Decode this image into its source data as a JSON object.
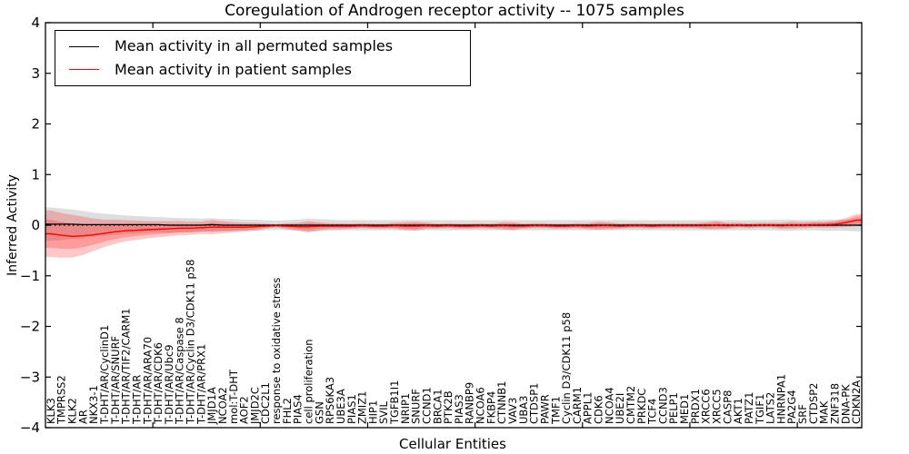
{
  "figure": {
    "title": "Coregulation of Androgen receptor activity -- 1075 samples",
    "xlabel": "Cellular Entities",
    "ylabel": "Inferred Activity"
  },
  "legend": {
    "items": [
      {
        "label": "Mean activity in all permuted samples",
        "color": "#000000"
      },
      {
        "label": "Mean activity in patient samples",
        "color": "#ff0000"
      }
    ]
  },
  "axes": {
    "y_ticks": [
      "4",
      "3",
      "2",
      "1",
      "0",
      "−1",
      "−2",
      "−3",
      "−4"
    ],
    "y_range": [
      -4,
      4
    ],
    "x_range": [
      0,
      76
    ],
    "x_major_tick_positions": [
      10,
      20,
      30,
      40,
      50,
      60,
      70
    ],
    "grid": "off",
    "zero_line_style": "dotted"
  },
  "chart_data": {
    "type": "line",
    "title": "Coregulation of Androgen receptor activity -- 1075 samples",
    "xlabel": "Cellular Entities",
    "ylabel": "Inferred Activity",
    "ylim": [
      -4,
      4
    ],
    "legend_position": "upper-left",
    "categories": [
      "KLK3",
      "TMPRSS2",
      "KLK2",
      "AR",
      "NKX3-1",
      "T-DHT/AR/CyclinD1",
      "T-DHT/AR/SNURF",
      "T-DHT/AR/TIF2/CARM1",
      "T-DHT/AR",
      "T-DHT/AR/ARA70",
      "T-DHT/AR/CDK6",
      "T-DHT/AR/Ubc9",
      "T-DHT/AR/Caspase 8",
      "T-DHT/AR/Cyclin D3/CDK11 p58",
      "T-DHT/AR/PRX1",
      "JMJD1A",
      "NCOA2",
      "mol:T-DHT",
      "AOF2",
      "JMJD2C",
      "CDC2L1",
      "response to oxidative stress",
      "FHL2",
      "PIAS4",
      "cell proliferation",
      "GSN",
      "RPS6KA3",
      "UBE3A",
      "PIAS1",
      "ZMIZ1",
      "HIP1",
      "SVIL",
      "TGFB1I1",
      "NRIP1",
      "SNURF",
      "CCND1",
      "BRCA1",
      "PTK2B",
      "PIAS3",
      "RANBP9",
      "NCOA6",
      "FKBP4",
      "CTNNB1",
      "VAV3",
      "UBA3",
      "CTDSP1",
      "PAWR",
      "TMF1",
      "Cyclin D3/CDK11 p58",
      "CARM1",
      "APPL1",
      "CDK6",
      "NCOA4",
      "UBE2I",
      "CMTM2",
      "PRKDC",
      "TCF4",
      "CCND3",
      "PELP1",
      "MED1",
      "PRDX1",
      "XRCC6",
      "XRCC5",
      "CASP8",
      "AKT1",
      "PATZ1",
      "TGIF1",
      "LATS2",
      "HNRNPA1",
      "PA2G4",
      "SRF",
      "CTDSP2",
      "MAK",
      "ZNF318",
      "DNA-PK",
      "CDKN2A"
    ],
    "series": [
      {
        "name": "Mean activity in all permuted samples",
        "color": "#000000",
        "band_color": "rgba(0,0,0,0.13)",
        "values": [
          0.02,
          0.02,
          0.02,
          0.01,
          0.01,
          0.01,
          0.01,
          0.01,
          0.01,
          0.01,
          0.01,
          0.0,
          0.0,
          0.0,
          0.0,
          0.01,
          0.0,
          0.0,
          0.0,
          0.0,
          0.0,
          0.0,
          0.0,
          0.0,
          0.0,
          0.0,
          0.0,
          0.0,
          0.0,
          0.0,
          0.0,
          0.0,
          0.0,
          0.0,
          0.0,
          0.0,
          0.0,
          0.0,
          0.0,
          0.0,
          0.0,
          0.0,
          0.0,
          0.0,
          0.0,
          0.0,
          0.0,
          0.0,
          0.0,
          0.0,
          0.0,
          0.0,
          0.0,
          0.0,
          0.0,
          0.0,
          0.0,
          0.0,
          0.0,
          0.0,
          0.0,
          0.0,
          0.0,
          0.0,
          0.0,
          0.0,
          0.0,
          0.0,
          0.0,
          0.0,
          0.0,
          0.0,
          0.0,
          0.0,
          0.0,
          0.0
        ],
        "band": [
          0.33,
          0.31,
          0.29,
          0.27,
          0.24,
          0.22,
          0.2,
          0.18,
          0.17,
          0.16,
          0.15,
          0.15,
          0.14,
          0.14,
          0.13,
          0.13,
          0.12,
          0.12,
          0.11,
          0.11,
          0.1,
          0.09,
          0.1,
          0.11,
          0.13,
          0.12,
          0.11,
          0.1,
          0.1,
          0.1,
          0.1,
          0.1,
          0.1,
          0.1,
          0.1,
          0.1,
          0.1,
          0.1,
          0.1,
          0.1,
          0.1,
          0.1,
          0.1,
          0.1,
          0.1,
          0.1,
          0.1,
          0.1,
          0.1,
          0.1,
          0.1,
          0.1,
          0.1,
          0.1,
          0.1,
          0.1,
          0.1,
          0.1,
          0.1,
          0.1,
          0.1,
          0.1,
          0.1,
          0.1,
          0.1,
          0.1,
          0.1,
          0.1,
          0.11,
          0.11,
          0.1,
          0.1,
          0.11,
          0.11,
          0.11,
          0.12
        ]
      },
      {
        "name": "Mean activity in patient samples",
        "color": "#ff0000",
        "band_color": "rgba(255,0,0,0.22)",
        "values": [
          -0.17,
          -0.2,
          -0.22,
          -0.21,
          -0.19,
          -0.16,
          -0.13,
          -0.11,
          -0.1,
          -0.09,
          -0.08,
          -0.07,
          -0.06,
          -0.06,
          -0.05,
          -0.04,
          -0.04,
          -0.04,
          -0.04,
          -0.03,
          -0.02,
          -0.01,
          -0.02,
          -0.03,
          -0.03,
          -0.02,
          -0.02,
          -0.02,
          -0.02,
          -0.01,
          -0.02,
          -0.02,
          -0.01,
          -0.02,
          -0.02,
          -0.01,
          -0.02,
          -0.01,
          -0.02,
          -0.02,
          -0.01,
          -0.02,
          -0.01,
          -0.02,
          -0.02,
          -0.01,
          -0.01,
          -0.02,
          -0.02,
          -0.01,
          -0.02,
          -0.01,
          -0.01,
          -0.02,
          -0.01,
          -0.01,
          -0.02,
          -0.01,
          -0.01,
          -0.01,
          -0.01,
          -0.01,
          0.0,
          -0.01,
          0.0,
          -0.01,
          0.0,
          0.0,
          -0.01,
          0.0,
          0.0,
          0.01,
          0.01,
          0.02,
          0.05,
          0.1
        ],
        "band": [
          0.46,
          0.44,
          0.42,
          0.38,
          0.32,
          0.27,
          0.24,
          0.21,
          0.19,
          0.17,
          0.16,
          0.15,
          0.14,
          0.13,
          0.12,
          0.14,
          0.12,
          0.1,
          0.09,
          0.08,
          0.05,
          0.03,
          0.06,
          0.08,
          0.11,
          0.08,
          0.06,
          0.06,
          0.05,
          0.05,
          0.05,
          0.05,
          0.06,
          0.08,
          0.09,
          0.06,
          0.05,
          0.05,
          0.05,
          0.05,
          0.05,
          0.05,
          0.07,
          0.08,
          0.05,
          0.05,
          0.05,
          0.05,
          0.05,
          0.05,
          0.06,
          0.08,
          0.07,
          0.05,
          0.05,
          0.05,
          0.05,
          0.05,
          0.05,
          0.05,
          0.05,
          0.07,
          0.08,
          0.06,
          0.05,
          0.05,
          0.05,
          0.05,
          0.06,
          0.07,
          0.06,
          0.06,
          0.06,
          0.07,
          0.09,
          0.12
        ]
      }
    ]
  }
}
